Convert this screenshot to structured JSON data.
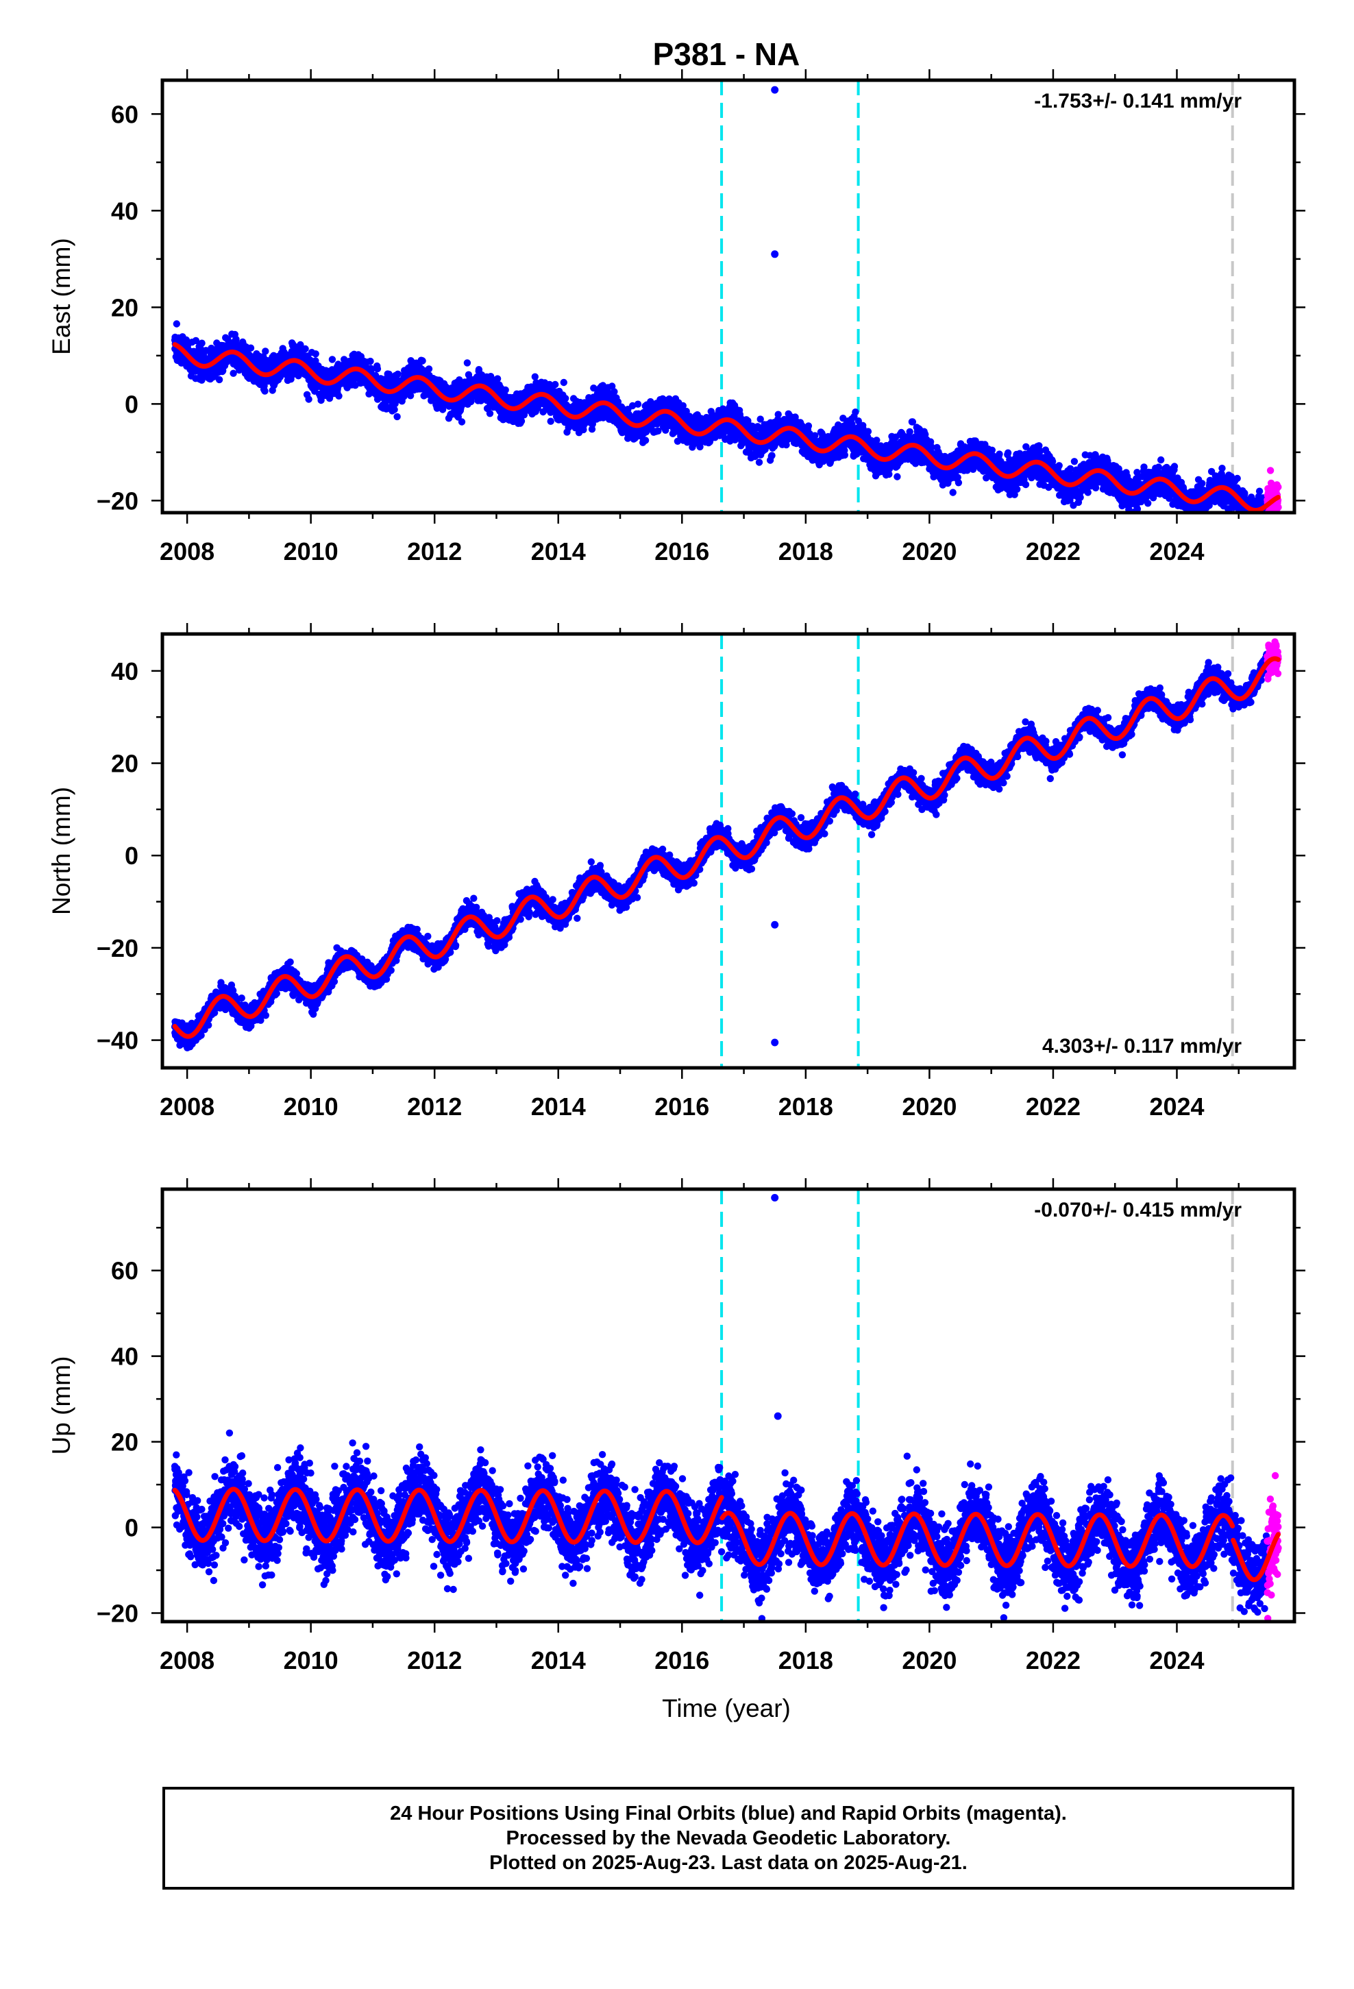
{
  "title": "P381 - NA",
  "xlabel": "Time (year)",
  "colors": {
    "final_points": "#0000ff",
    "rapid_points": "#ff00ff",
    "model": "#ff0000",
    "equipment_change": "#00e5ee",
    "last_marker": "#c8c8c8",
    "frame": "#000000"
  },
  "chart_data": [
    {
      "type": "scatter",
      "component": "east",
      "ylabel": "East (mm)",
      "rate_label": "-1.753+/- 0.141 mm/yr",
      "rate_label_position": "top-right",
      "xlim": [
        2007.6,
        2025.9
      ],
      "ylim": [
        -22.5,
        67
      ],
      "xticks": [
        "2008",
        "2010",
        "2012",
        "2014",
        "2016",
        "2018",
        "2020",
        "2022",
        "2024"
      ],
      "yticks": [
        "−20",
        "0",
        "20",
        "40",
        "60"
      ],
      "ytick_values": [
        -20,
        0,
        20,
        40,
        60
      ],
      "start_year": 2007.8,
      "end_year": 2025.64,
      "rapid_start": 2025.46,
      "start_value": 10.5,
      "trend_mm_per_yr": -1.753,
      "seasonal_amplitude": 1.9,
      "seasonal_phase_year": 2008.75,
      "scatter_mm": 1.6,
      "outliers": [
        {
          "x": 2017.5,
          "y": 65.0
        },
        {
          "x": 2017.5,
          "y": 31.0
        }
      ],
      "equipment_changes": [
        2016.64,
        2018.85
      ],
      "last_marker": 2024.9
    },
    {
      "type": "scatter",
      "component": "north",
      "ylabel": "North (mm)",
      "rate_label": "4.303+/- 0.117 mm/yr",
      "rate_label_position": "bottom-right",
      "xlim": [
        2007.6,
        2025.9
      ],
      "ylim": [
        -46,
        48
      ],
      "xticks": [
        "2008",
        "2010",
        "2012",
        "2014",
        "2016",
        "2018",
        "2020",
        "2022",
        "2024"
      ],
      "yticks": [
        "−40",
        "−20",
        "0",
        "20",
        "40"
      ],
      "ytick_values": [
        -40,
        -20,
        0,
        20,
        40
      ],
      "start_year": 2007.8,
      "end_year": 2025.64,
      "rapid_start": 2025.46,
      "start_value": -37.0,
      "trend_mm_per_yr": 4.303,
      "seasonal_amplitude": 3.2,
      "seasonal_phase_year": 2008.55,
      "scatter_mm": 1.2,
      "outliers": [
        {
          "x": 2017.5,
          "y": -15.0
        },
        {
          "x": 2017.5,
          "y": -40.5
        }
      ],
      "equipment_changes": [
        2016.64,
        2018.85
      ],
      "last_marker": 2024.9
    },
    {
      "type": "scatter",
      "component": "up",
      "ylabel": "Up (mm)",
      "rate_label": "-0.070+/- 0.415 mm/yr",
      "rate_label_position": "top-right",
      "xlim": [
        2007.6,
        2025.9
      ],
      "ylim": [
        -22,
        79
      ],
      "xticks": [
        "2008",
        "2010",
        "2012",
        "2014",
        "2016",
        "2018",
        "2020",
        "2022",
        "2024"
      ],
      "yticks": [
        "−20",
        "0",
        "20",
        "40",
        "60"
      ],
      "ytick_values": [
        -20,
        0,
        20,
        40,
        60
      ],
      "start_year": 2007.8,
      "end_year": 2025.64,
      "rapid_start": 2025.46,
      "start_value": 3.0,
      "trend_mm_per_yr": -0.07,
      "seasonal_amplitude": 6.0,
      "seasonal_phase_year": 2008.75,
      "offsets": [
        {
          "at": 2016.64,
          "delta": -5.0
        },
        {
          "at": 2024.9,
          "delta": -3.0
        }
      ],
      "scatter_mm": 4.0,
      "outliers": [
        {
          "x": 2017.5,
          "y": 77.0
        },
        {
          "x": 2017.55,
          "y": 26.0
        }
      ],
      "equipment_changes": [
        2016.64,
        2018.85
      ],
      "last_marker": 2024.9
    }
  ],
  "footer": {
    "line1": "24 Hour Positions Using Final Orbits (blue) and Rapid Orbits (magenta).",
    "line2": "Processed by the Nevada Geodetic Laboratory.",
    "line3": "Plotted on 2025-Aug-23. Last data on 2025-Aug-21."
  }
}
